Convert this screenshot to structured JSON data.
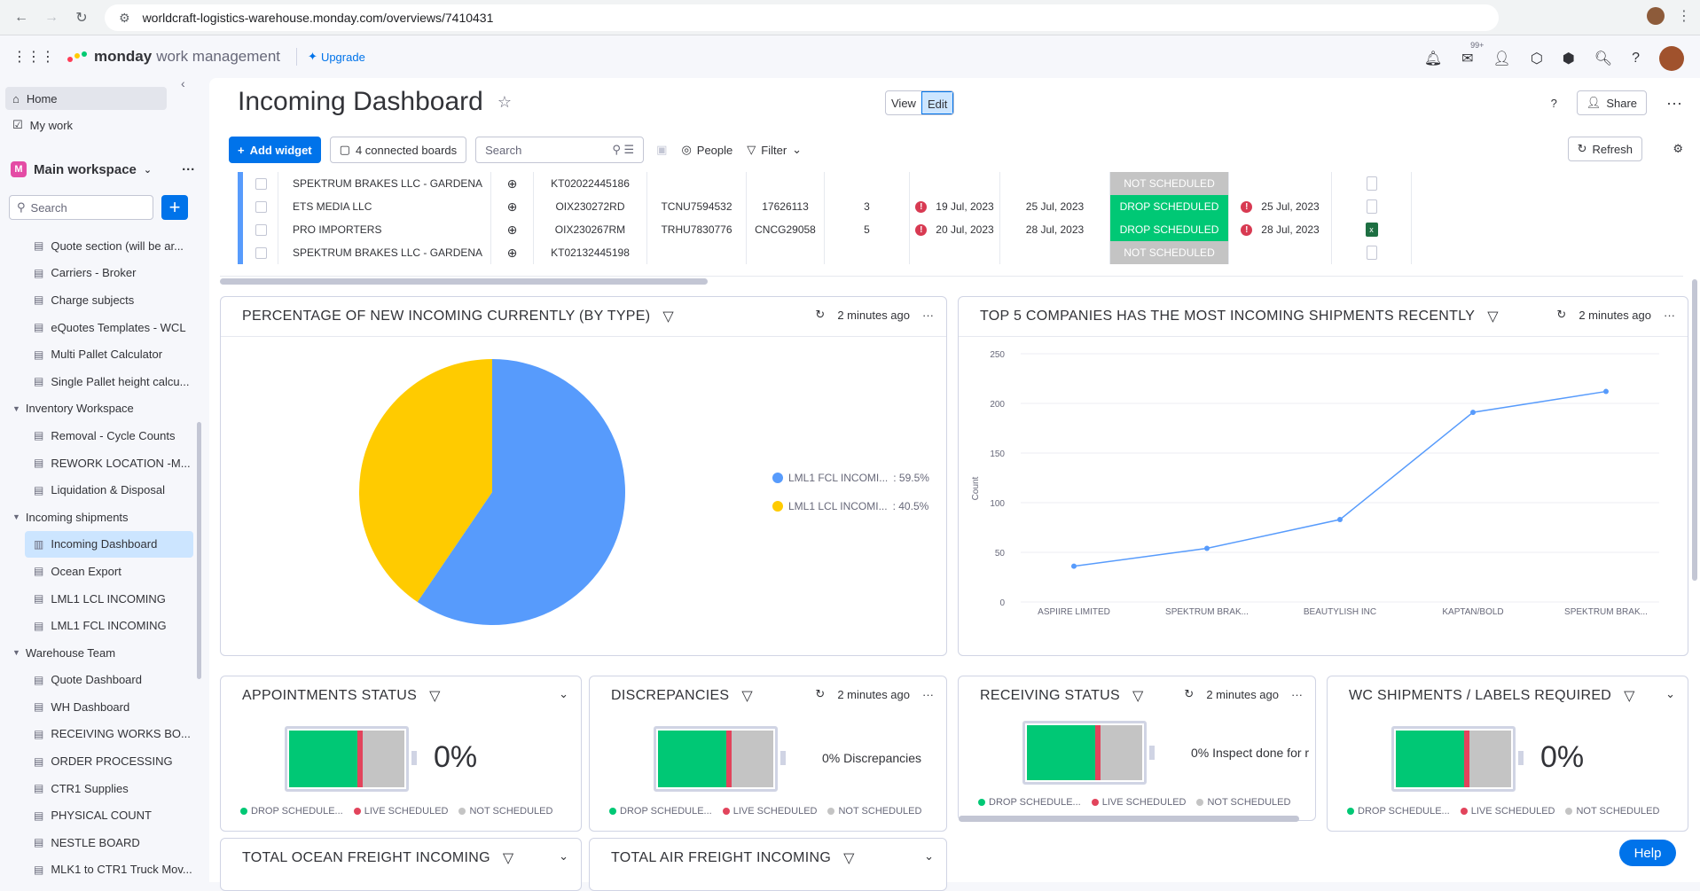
{
  "browser": {
    "url": "worldcraft-logistics-warehouse.monday.com/overviews/7410431"
  },
  "appbar": {
    "brand": "monday",
    "product": "work management",
    "upgrade_label": "Upgrade",
    "inbox_badge": "99+"
  },
  "sidebar": {
    "home": "Home",
    "my_work": "My work",
    "workspace": "Main workspace",
    "workspace_initial": "M",
    "search_placeholder": "Search",
    "items": [
      {
        "type": "board",
        "label": "Quote section (will be ar..."
      },
      {
        "type": "board",
        "label": "Carriers - Broker"
      },
      {
        "type": "board",
        "label": "Charge subjects"
      },
      {
        "type": "board",
        "label": "eQuotes Templates - WCL"
      },
      {
        "type": "board",
        "label": "Multi Pallet Calculator"
      },
      {
        "type": "board",
        "label": "Single Pallet height calcu..."
      },
      {
        "type": "folder",
        "label": "Inventory Workspace"
      },
      {
        "type": "board",
        "label": "Removal - Cycle Counts"
      },
      {
        "type": "board",
        "label": "REWORK LOCATION -M..."
      },
      {
        "type": "board",
        "label": "Liquidation & Disposal"
      },
      {
        "type": "folder",
        "label": "Incoming shipments"
      },
      {
        "type": "dashboard",
        "label": "Incoming Dashboard",
        "active": true
      },
      {
        "type": "board",
        "label": "Ocean Export"
      },
      {
        "type": "board",
        "label": "LML1 LCL INCOMING"
      },
      {
        "type": "board",
        "label": "LML1 FCL INCOMING"
      },
      {
        "type": "folder",
        "label": "Warehouse Team"
      },
      {
        "type": "board",
        "label": "Quote Dashboard"
      },
      {
        "type": "board",
        "label": "WH Dashboard"
      },
      {
        "type": "board",
        "label": "RECEIVING WORKS BO..."
      },
      {
        "type": "board",
        "label": "ORDER PROCESSING"
      },
      {
        "type": "board",
        "label": "CTR1 Supplies"
      },
      {
        "type": "board",
        "label": "PHYSICAL COUNT"
      },
      {
        "type": "board",
        "label": "NESTLE BOARD"
      },
      {
        "type": "board",
        "label": "MLK1 to CTR1 Truck Mov..."
      }
    ]
  },
  "header": {
    "title": "Incoming Dashboard",
    "view_label": "View",
    "edit_label": "Edit",
    "help_label": "?",
    "share_label": "Share"
  },
  "toolbar": {
    "add_widget": "Add widget",
    "connected_boards": "4 connected boards",
    "search_placeholder": "Search",
    "people": "People",
    "filter": "Filter",
    "refresh": "Refresh"
  },
  "table": {
    "rows": [
      {
        "name": "SPEKTRUM BRAKES LLC - GARDENA",
        "ref": "KT02022445186",
        "container": "",
        "seal": "",
        "qty": "",
        "eta": "",
        "eta_alert": false,
        "due": "",
        "status": "NOT SCHEDULED",
        "status_color": "#c4c4c4",
        "date2": "",
        "date2_alert": false,
        "file": false
      },
      {
        "name": "ETS MEDIA LLC",
        "ref": "OIX230272RD",
        "container": "TCNU7594532",
        "seal": "17626113",
        "qty": "3",
        "eta": "19 Jul, 2023",
        "eta_alert": true,
        "due": "25 Jul, 2023",
        "status": "DROP SCHEDULED",
        "status_color": "#00c875",
        "date2": "25 Jul, 2023",
        "date2_alert": true,
        "file": false
      },
      {
        "name": "PRO IMPORTERS",
        "ref": "OIX230267RM",
        "container": "TRHU7830776",
        "seal": "CNCG29058",
        "qty": "5",
        "eta": "20 Jul, 2023",
        "eta_alert": true,
        "due": "28 Jul, 2023",
        "status": "DROP SCHEDULED",
        "status_color": "#00c875",
        "date2": "28 Jul, 2023",
        "date2_alert": true,
        "file": true
      },
      {
        "name": "SPEKTRUM BRAKES LLC - GARDENA",
        "ref": "KT02132445198",
        "container": "",
        "seal": "",
        "qty": "",
        "eta": "",
        "eta_alert": false,
        "due": "",
        "status": "NOT SCHEDULED",
        "status_color": "#c4c4c4",
        "date2": "",
        "date2_alert": false,
        "file": false
      }
    ]
  },
  "widgets": {
    "pie": {
      "title": "PERCENTAGE OF NEW INCOMING CURRENTLY (BY TYPE)",
      "updated": "2 minutes ago",
      "legend": [
        {
          "label": "LML1 FCL INCOMI...",
          "value": ": 59.5%",
          "color": "#579bfc"
        },
        {
          "label": "LML1 LCL INCOMI...",
          "value": ": 40.5%",
          "color": "#ffcb00"
        }
      ]
    },
    "line": {
      "title": "TOP 5 COMPANIES HAS THE MOST INCOMING SHIPMENTS RECENTLY",
      "updated": "2 minutes ago",
      "ylabel": "Count"
    },
    "appointments": {
      "title": "APPOINTMENTS STATUS",
      "value": "0%",
      "legend": [
        "DROP SCHEDULE...",
        "LIVE SCHEDULED",
        "NOT SCHEDULED"
      ]
    },
    "discrepancies": {
      "title": "DISCREPANCIES",
      "updated": "2 minutes ago",
      "value": "0% Discrepancies",
      "legend": [
        "DROP SCHEDULE...",
        "LIVE SCHEDULED",
        "NOT SCHEDULED"
      ]
    },
    "receiving": {
      "title": "RECEIVING STATUS",
      "updated": "2 minutes ago",
      "value": "0% Inspect done for r",
      "legend": [
        "DROP SCHEDULE...",
        "LIVE SCHEDULED",
        "NOT SCHEDULED"
      ]
    },
    "wc_shipments": {
      "title": "WC SHIPMENTS / LABELS REQUIRED",
      "value": "0%",
      "legend": [
        "DROP SCHEDULE...",
        "LIVE SCHEDULED",
        "NOT SCHEDULED"
      ]
    },
    "ocean": {
      "title": "TOTAL OCEAN FREIGHT INCOMING"
    },
    "air": {
      "title": "TOTAL AIR FREIGHT INCOMING"
    }
  },
  "status_colors": {
    "drop": "#00c875",
    "live": "#e2445c",
    "not": "#c4c4c4"
  },
  "help_button": "Help",
  "chart_data": [
    {
      "type": "pie",
      "title": "PERCENTAGE OF NEW INCOMING CURRENTLY (BY TYPE)",
      "categories": [
        "LML1 FCL INCOMI...",
        "LML1 LCL INCOMI..."
      ],
      "values": [
        59.5,
        40.5
      ],
      "colors": [
        "#579bfc",
        "#ffcb00"
      ],
      "legend": "right"
    },
    {
      "type": "line",
      "title": "TOP 5 COMPANIES HAS THE MOST INCOMING SHIPMENTS RECENTLY",
      "categories": [
        "ASPIIRE LIMITED",
        "SPEKTRUM BRAK...",
        "BEAUTYLISH INC",
        "KAPTAN/BOLD",
        "SPEKTRUM BRAK..."
      ],
      "values": [
        36,
        54,
        83,
        191,
        212
      ],
      "ylabel": "Count",
      "ylim": [
        0,
        250
      ],
      "yticks": [
        0,
        50,
        100,
        150,
        200,
        250
      ],
      "color": "#579bfc",
      "grid": "horizontal"
    }
  ]
}
